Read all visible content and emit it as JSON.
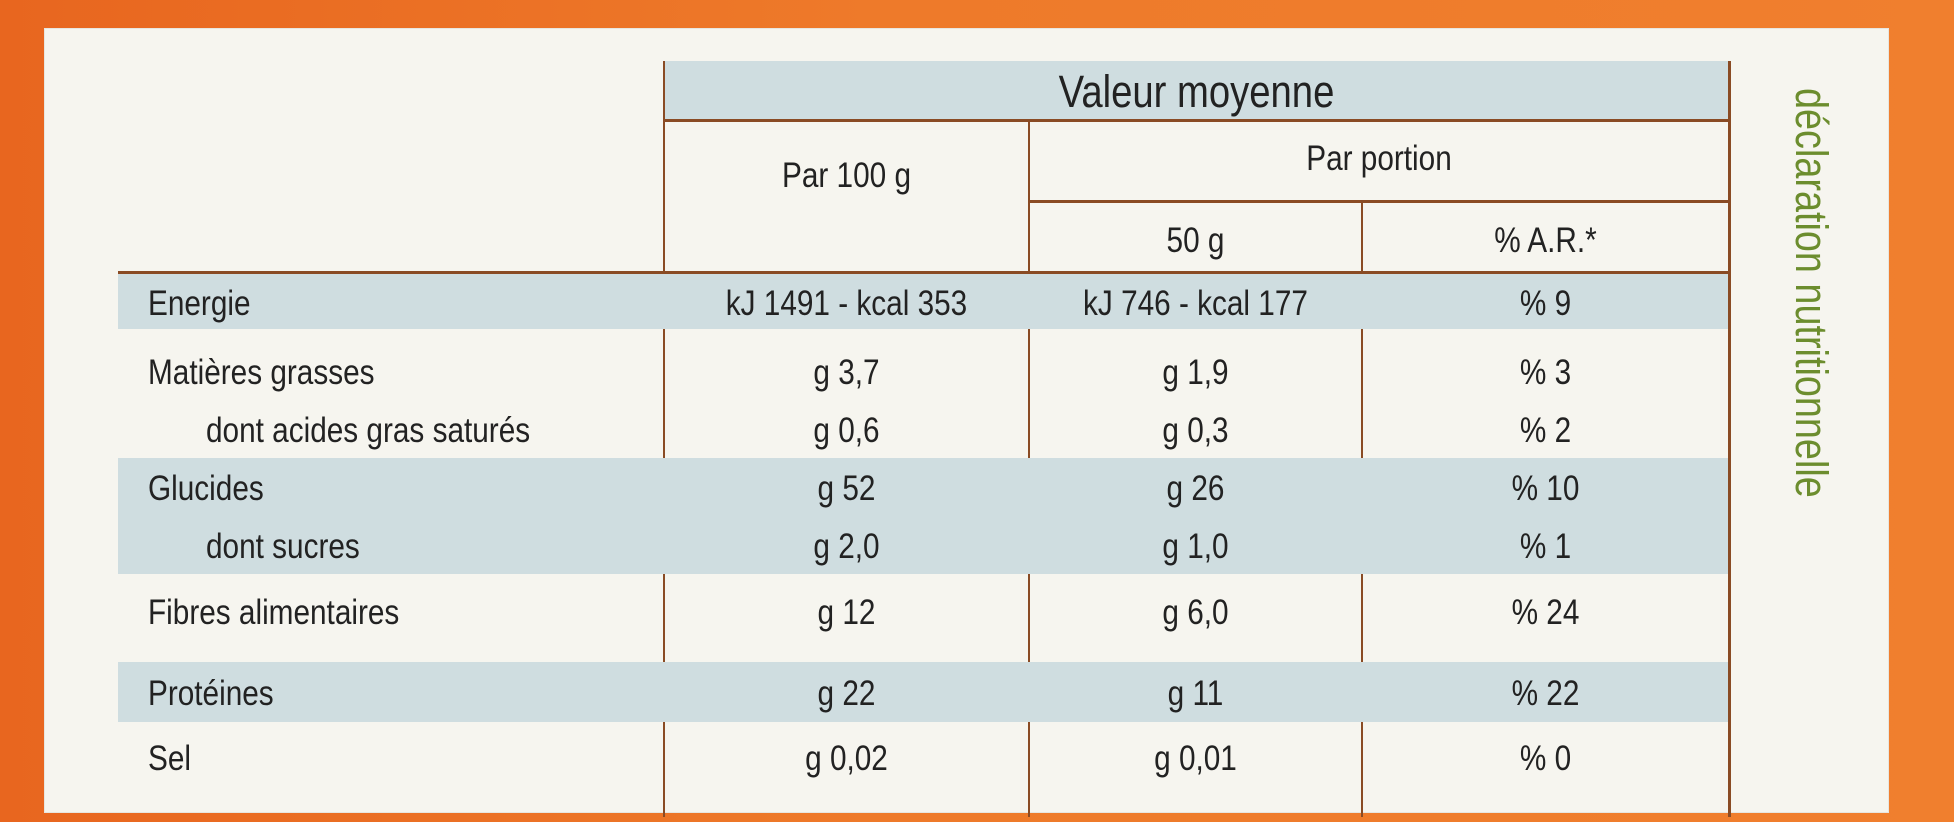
{
  "header": {
    "valeur_moyenne": "Valeur moyenne",
    "par_100g": "Par 100 g",
    "par_portion": "Par portion",
    "portion_weight": "50 g",
    "ar_percent": "% A.R.*"
  },
  "rows": [
    {
      "label": "Energie",
      "indent": false,
      "par_100g": "kJ 1491 - kcal 353",
      "portion": "kJ 746 - kcal 177",
      "ar_percent": "% 9",
      "shaded": true
    },
    {
      "label": "Matières grasses",
      "indent": false,
      "par_100g": "g 3,7",
      "portion": "g 1,9",
      "ar_percent": "% 3",
      "shaded": false
    },
    {
      "label": "dont acides gras saturés",
      "indent": true,
      "par_100g": "g 0,6",
      "portion": "g 0,3",
      "ar_percent": "% 2",
      "shaded": false
    },
    {
      "label": "Glucides",
      "indent": false,
      "par_100g": "g 52",
      "portion": "g 26",
      "ar_percent": "% 10",
      "shaded": true
    },
    {
      "label": "dont sucres",
      "indent": true,
      "par_100g": "g 2,0",
      "portion": "g 1,0",
      "ar_percent": "% 1",
      "shaded": true
    },
    {
      "label": "Fibres alimentaires",
      "indent": false,
      "par_100g": "g 12",
      "portion": "g 6,0",
      "ar_percent": "% 24",
      "shaded": false
    },
    {
      "label": "Protéines",
      "indent": false,
      "par_100g": "g 22",
      "portion": "g 11",
      "ar_percent": "% 22",
      "shaded": true
    },
    {
      "label": "Sel",
      "indent": false,
      "par_100g": "g 0,02",
      "portion": "g 0,01",
      "ar_percent": "% 0",
      "shaded": false
    }
  ],
  "side_title": "déclaration nutritionnelle",
  "colors": {
    "background_orange": "#ee7a2a",
    "card": "#f6f5ef",
    "band_blue": "#cfdde0",
    "rule_brown": "#8a4b24",
    "title_green": "#6c8d2e",
    "text": "#222222"
  }
}
